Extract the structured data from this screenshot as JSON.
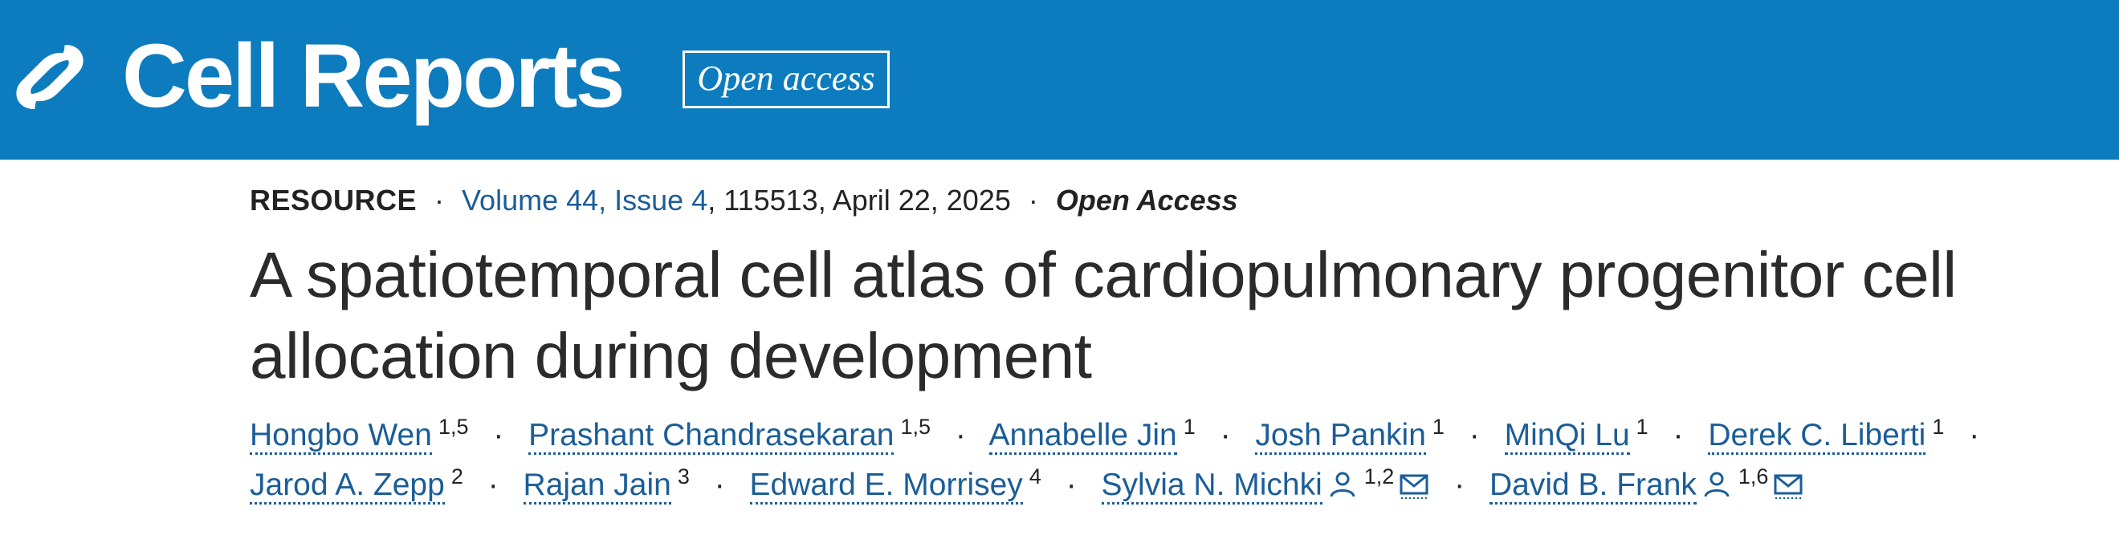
{
  "header": {
    "journal": "Cell Reports",
    "badge": "Open access"
  },
  "meta": {
    "article_type": "RESOURCE",
    "separator": "·",
    "volume_issue": "Volume 44, Issue 4",
    "details": ", 115513, April 22, 2025",
    "access": "Open Access"
  },
  "title": "A spatiotemporal cell atlas of cardiopulmonary progenitor cell allocation during development",
  "authors": [
    {
      "name": "Hongbo Wen",
      "affiliations": "1,5",
      "corresponding": false
    },
    {
      "name": "Prashant Chandrasekaran",
      "affiliations": "1,5",
      "corresponding": false
    },
    {
      "name": "Annabelle Jin",
      "affiliations": "1",
      "corresponding": false
    },
    {
      "name": "Josh Pankin",
      "affiliations": "1",
      "corresponding": false
    },
    {
      "name": "MinQi Lu",
      "affiliations": "1",
      "corresponding": false
    },
    {
      "name": "Derek C. Liberti",
      "affiliations": "1",
      "corresponding": false
    },
    {
      "name": "Jarod A. Zepp",
      "affiliations": "2",
      "corresponding": false
    },
    {
      "name": "Rajan Jain",
      "affiliations": "3",
      "corresponding": false
    },
    {
      "name": "Edward E. Morrisey",
      "affiliations": "4",
      "corresponding": false
    },
    {
      "name": "Sylvia N. Michki",
      "affiliations": "1,2",
      "corresponding": true
    },
    {
      "name": "David B. Frank",
      "affiliations": "1,6",
      "corresponding": true
    }
  ]
}
